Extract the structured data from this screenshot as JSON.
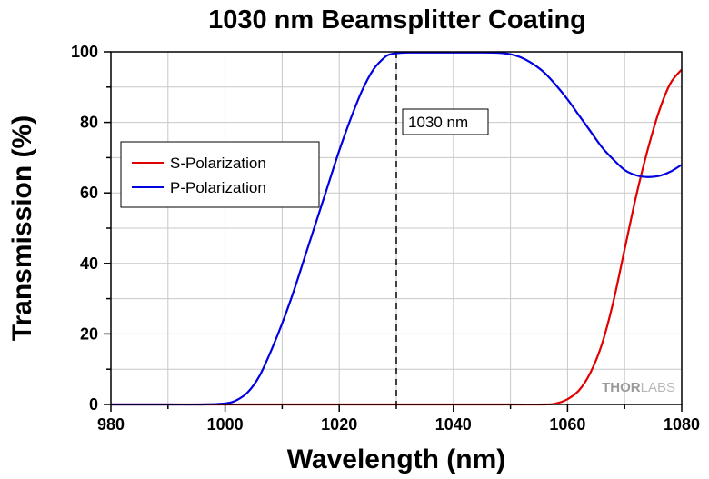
{
  "chart_data": {
    "type": "line",
    "title": "1030 nm Beamsplitter Coating",
    "xlabel": "Wavelength (nm)",
    "ylabel": "Transmission (%)",
    "xlim": [
      980,
      1080
    ],
    "ylim": [
      0,
      100
    ],
    "x_ticks": [
      "980",
      "1000",
      "1020",
      "1040",
      "1060",
      "1080"
    ],
    "y_ticks": [
      "0",
      "20",
      "40",
      "60",
      "80",
      "100"
    ],
    "grid": true,
    "legend_position": "middle-left",
    "series": [
      {
        "name": "S-Polarization",
        "color": "#e00000",
        "x": [
          980,
          990,
          1000,
          1010,
          1020,
          1030,
          1040,
          1050,
          1056,
          1058,
          1060,
          1062,
          1064,
          1066,
          1068,
          1070,
          1072,
          1074,
          1076,
          1078,
          1080
        ],
        "y": [
          0,
          0,
          0,
          0,
          0,
          0,
          0,
          0,
          0,
          0.3,
          1.5,
          4,
          9,
          17,
          29,
          44,
          59,
          72,
          83,
          91,
          95
        ]
      },
      {
        "name": "P-Polarization",
        "color": "#0000e0",
        "x": [
          980,
          990,
          996,
          1000,
          1002,
          1004,
          1006,
          1008,
          1010,
          1012,
          1014,
          1016,
          1018,
          1020,
          1022,
          1024,
          1026,
          1028,
          1029,
          1030,
          1032,
          1035,
          1040,
          1045,
          1048,
          1050,
          1052,
          1054,
          1056,
          1058,
          1060,
          1062,
          1064,
          1066,
          1068,
          1070,
          1072,
          1074,
          1076,
          1078,
          1080
        ],
        "y": [
          0,
          0,
          0,
          0.3,
          1.2,
          3.5,
          8,
          15,
          23,
          32,
          42,
          52,
          62,
          72,
          81,
          89,
          95,
          98.5,
          99.3,
          99.6,
          99.8,
          99.8,
          99.8,
          99.8,
          99.7,
          99.3,
          98.3,
          96.5,
          94,
          90.5,
          86.5,
          82,
          77.5,
          73,
          69.5,
          66.5,
          65,
          64.5,
          64.8,
          66,
          68
        ]
      }
    ],
    "annotations": [
      {
        "text": "1030 nm",
        "x": 1030
      }
    ],
    "watermark": "THORLABS"
  },
  "colors": {
    "axis": "#000000",
    "grid": "#c8c8c8",
    "cursor_line": "#000000"
  }
}
